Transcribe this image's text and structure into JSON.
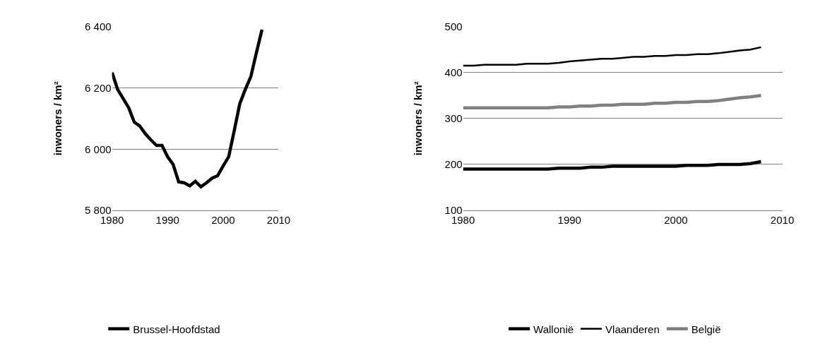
{
  "chart_data": [
    {
      "type": "line",
      "ylabel": "inwoners / km²",
      "x": [
        1980,
        1981,
        1982,
        1983,
        1984,
        1985,
        1986,
        1987,
        1988,
        1989,
        1990,
        1991,
        1992,
        1993,
        1994,
        1995,
        1996,
        1997,
        1998,
        1999,
        2000,
        2001,
        2002,
        2003,
        2004,
        2005,
        2006,
        2007
      ],
      "series": [
        {
          "name": "Brussel-Hoofdstad",
          "color": "#000000",
          "values": [
            6250,
            6195,
            6165,
            6135,
            6088,
            6075,
            6050,
            6030,
            6012,
            6012,
            5975,
            5950,
            5893,
            5890,
            5880,
            5895,
            5877,
            5890,
            5905,
            5913,
            5945,
            5975,
            6060,
            6148,
            6195,
            6237,
            6315,
            6390
          ]
        }
      ],
      "xlim": [
        1980,
        2010
      ],
      "xticks": [
        1980,
        1990,
        2000,
        2010
      ],
      "ylim": [
        5800,
        6400
      ],
      "yticks": [
        {
          "value": 5800,
          "label": "5 800"
        },
        {
          "value": 6000,
          "label": "6 000"
        },
        {
          "value": 6200,
          "label": "6 200"
        },
        {
          "value": 6400,
          "label": "6 400"
        }
      ],
      "grid": "y",
      "legend": "bottom",
      "marker": "none",
      "line_style": "solid"
    },
    {
      "type": "line",
      "ylabel": "inwoners / km²",
      "x": [
        1980,
        1981,
        1982,
        1983,
        1984,
        1985,
        1986,
        1987,
        1988,
        1989,
        1990,
        1991,
        1992,
        1993,
        1994,
        1995,
        1996,
        1997,
        1998,
        1999,
        2000,
        2001,
        2002,
        2003,
        2004,
        2005,
        2006,
        2007,
        2008
      ],
      "series": [
        {
          "name": "Wallonië",
          "color": "#000000",
          "values": [
            190,
            190,
            190,
            190,
            190,
            190,
            190,
            190,
            190,
            192,
            192,
            192,
            194,
            194,
            196,
            196,
            196,
            196,
            196,
            196,
            196,
            198,
            198,
            198,
            200,
            200,
            200,
            202,
            206
          ]
        },
        {
          "name": "Vlaanderen",
          "color": "#000000",
          "values": [
            415,
            415,
            417,
            417,
            417,
            417,
            419,
            419,
            419,
            421,
            424,
            426,
            428,
            430,
            430,
            432,
            434,
            434,
            436,
            436,
            438,
            438,
            440,
            440,
            442,
            445,
            448,
            450,
            455
          ]
        },
        {
          "name": "België",
          "color": "#808080",
          "values": [
            323,
            323,
            323,
            323,
            323,
            323,
            323,
            323,
            323,
            325,
            325,
            327,
            327,
            329,
            329,
            331,
            331,
            331,
            333,
            333,
            335,
            335,
            337,
            337,
            339,
            342,
            345,
            347,
            350
          ]
        }
      ],
      "xlim": [
        1980,
        2010
      ],
      "xticks": [
        1980,
        1990,
        2000,
        2010
      ],
      "ylim": [
        100,
        500
      ],
      "yticks": [
        100,
        200,
        300,
        400,
        500
      ],
      "grid": "y",
      "legend": "bottom",
      "marker": "none",
      "line_style": "solid"
    }
  ]
}
